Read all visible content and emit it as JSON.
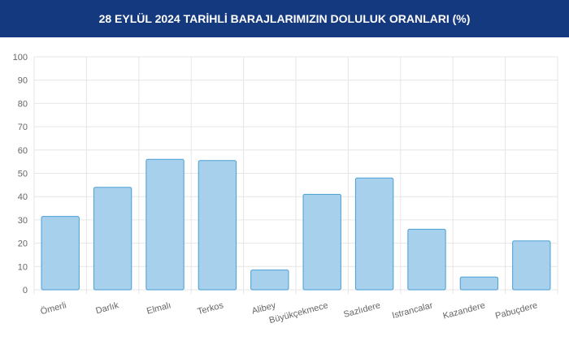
{
  "chart_data": {
    "type": "bar",
    "title": "28 EYLÜL 2024 TARİHLİ BARAJLARIMIZIN DOLULUK ORANLARI (%)",
    "categories": [
      "Ömerli",
      "Darlık",
      "Elmalı",
      "Terkos",
      "Alibey",
      "Büyükçekmece",
      "Sazlıdere",
      "Istrancalar",
      "Kazandere",
      "Pabuçdere"
    ],
    "values": [
      31.5,
      44,
      56,
      55.5,
      8.5,
      41,
      48,
      26,
      5.5,
      21
    ],
    "color": "#a6d0ec",
    "border_color": "#4a9fd4",
    "ylim": [
      0,
      100
    ],
    "yticks": [
      0,
      10,
      20,
      30,
      40,
      50,
      60,
      70,
      80,
      90,
      100
    ],
    "grid": true
  }
}
